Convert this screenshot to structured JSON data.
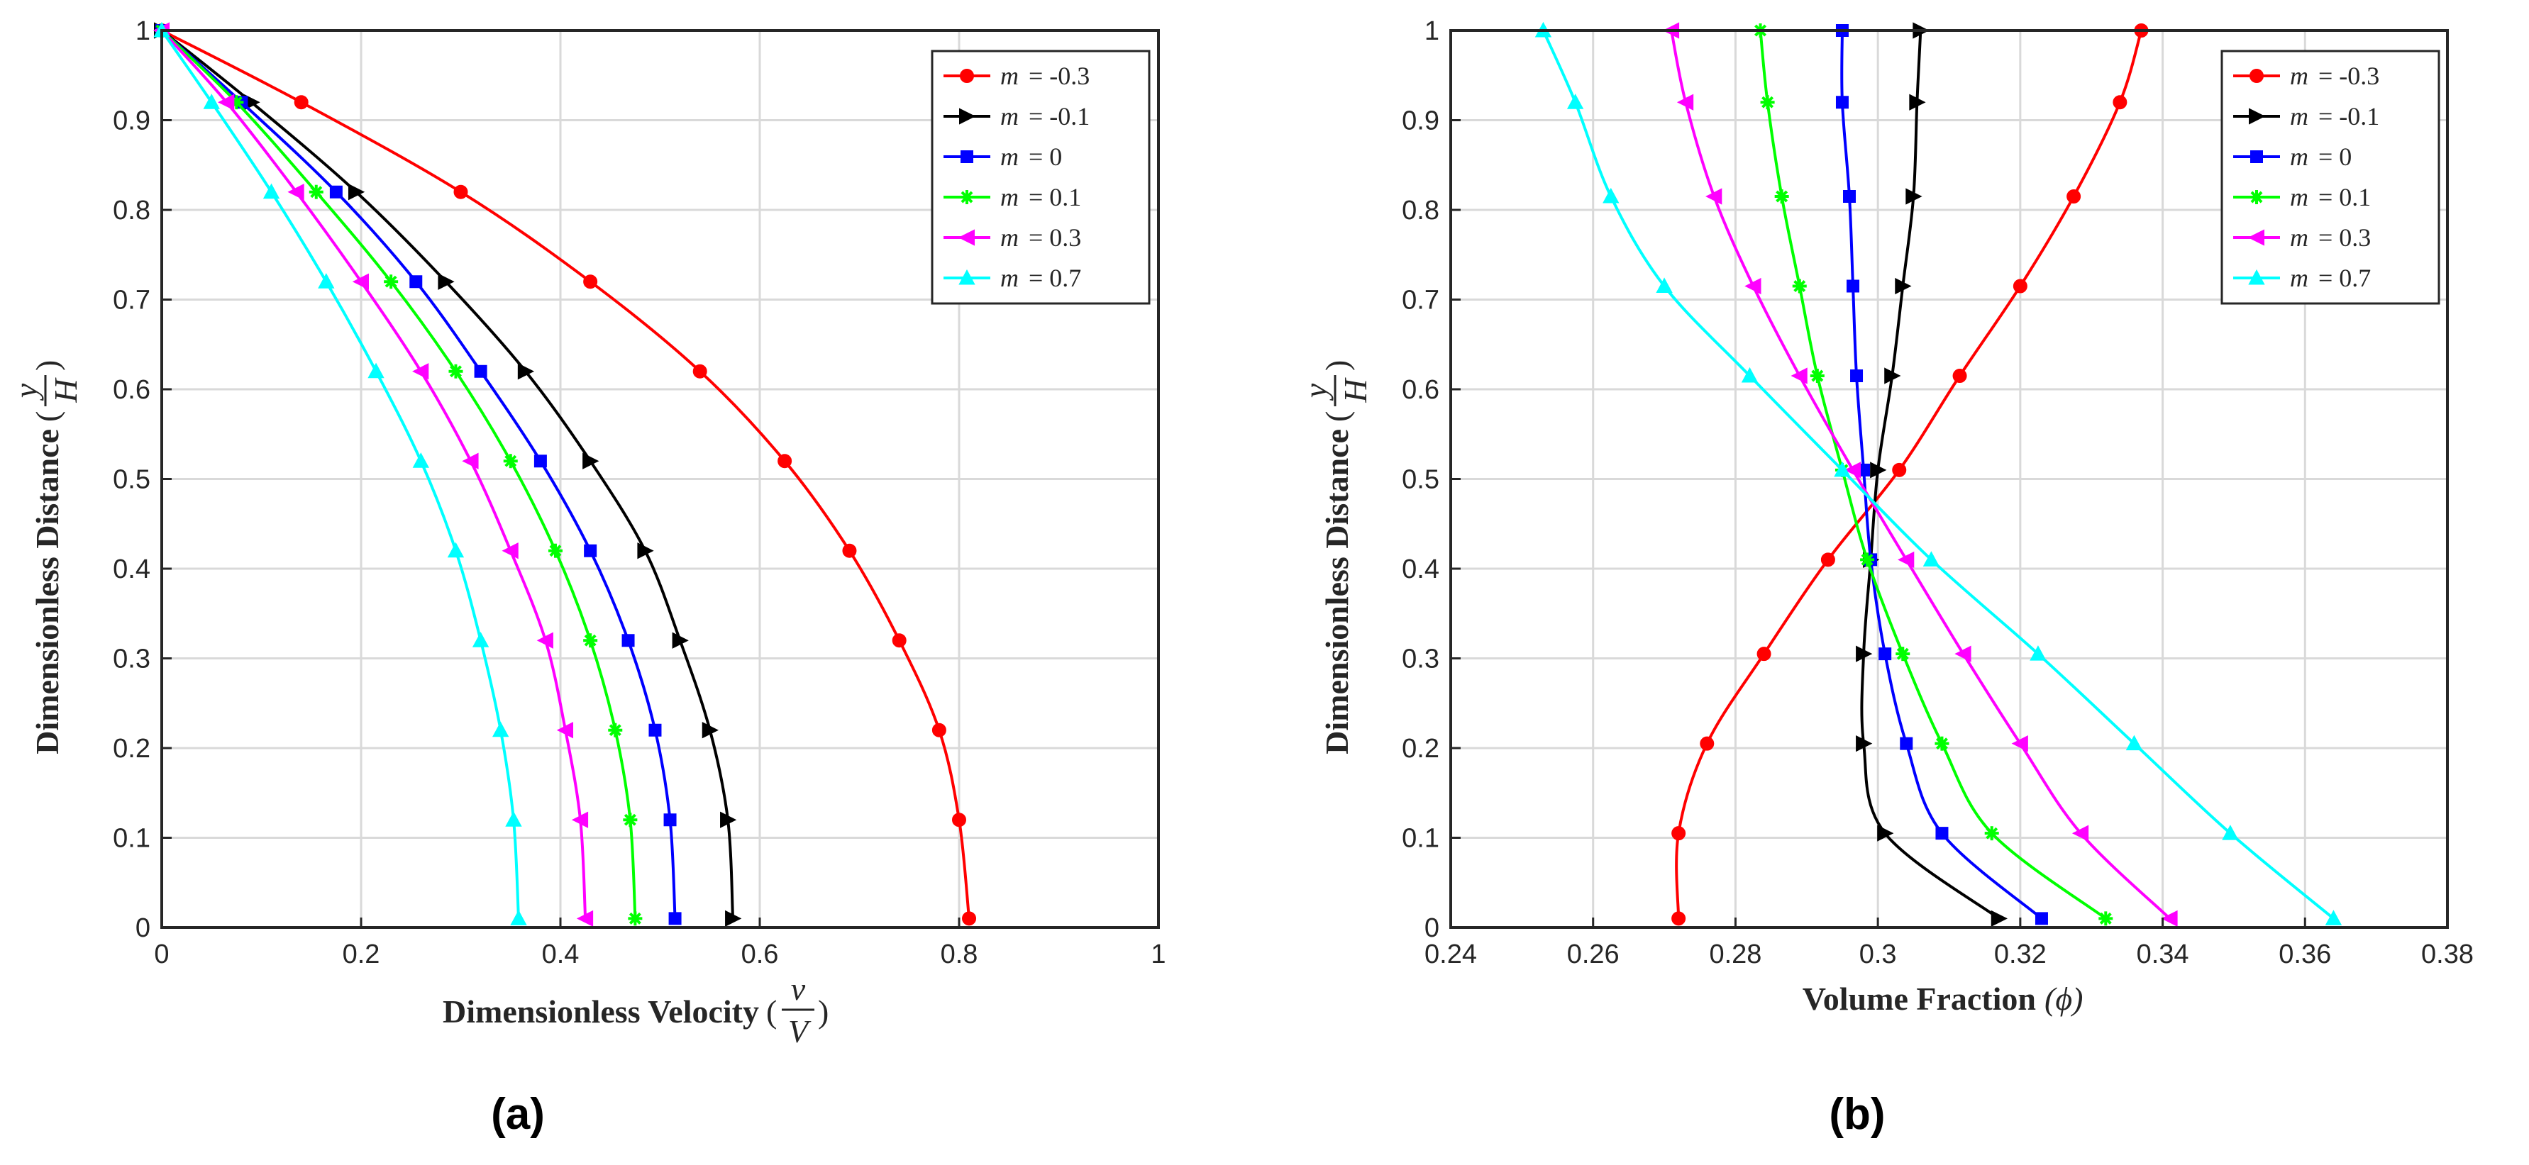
{
  "figure": {
    "labels": [
      "(a)",
      "(b)"
    ]
  },
  "chart_data": [
    {
      "type": "line",
      "panel": "(a)",
      "xlabel": "Dimensionless Velocity",
      "xlabel_fraction": {
        "num": "v",
        "den": "V"
      },
      "ylabel": "Dimensionless Distance",
      "ylabel_fraction": {
        "num": "y",
        "den": "H"
      },
      "xlim": [
        0,
        1
      ],
      "ylim": [
        0,
        1
      ],
      "xticks": [
        "0",
        "0.2",
        "0.4",
        "0.6",
        "0.8",
        "1"
      ],
      "yticks": [
        "0",
        "0.1",
        "0.2",
        "0.3",
        "0.4",
        "0.5",
        "0.6",
        "0.7",
        "0.8",
        "0.9",
        "1"
      ],
      "grid": true,
      "legend_position": "top-right",
      "series": [
        {
          "name": "m = -0.3",
          "symbol": "m",
          "value": "= -0.3",
          "color": "#ff0000",
          "marker": "circle",
          "x": [
            0,
            0.14,
            0.3,
            0.43,
            0.54,
            0.625,
            0.69,
            0.74,
            0.78,
            0.8,
            0.81
          ],
          "y": [
            1,
            0.92,
            0.82,
            0.72,
            0.62,
            0.52,
            0.42,
            0.32,
            0.22,
            0.12,
            0.01
          ]
        },
        {
          "name": "m = -0.1",
          "symbol": "m",
          "value": "= -0.1",
          "color": "#000000",
          "marker": "triangle-right",
          "x": [
            0,
            0.09,
            0.195,
            0.285,
            0.365,
            0.43,
            0.485,
            0.52,
            0.55,
            0.568,
            0.573
          ],
          "y": [
            1,
            0.92,
            0.82,
            0.72,
            0.62,
            0.52,
            0.42,
            0.32,
            0.22,
            0.12,
            0.01
          ]
        },
        {
          "name": "m = 0",
          "symbol": "m",
          "value": "= 0",
          "color": "#0000ff",
          "marker": "square",
          "x": [
            0,
            0.08,
            0.175,
            0.255,
            0.32,
            0.38,
            0.43,
            0.468,
            0.495,
            0.51,
            0.515
          ],
          "y": [
            1,
            0.92,
            0.82,
            0.72,
            0.62,
            0.52,
            0.42,
            0.32,
            0.22,
            0.12,
            0.01
          ]
        },
        {
          "name": "m = 0.1",
          "symbol": "m",
          "value": "= 0.1",
          "color": "#00ff00",
          "marker": "star",
          "x": [
            0,
            0.075,
            0.155,
            0.23,
            0.295,
            0.35,
            0.395,
            0.43,
            0.455,
            0.47,
            0.475
          ],
          "y": [
            1,
            0.92,
            0.82,
            0.72,
            0.62,
            0.52,
            0.42,
            0.32,
            0.22,
            0.12,
            0.01
          ]
        },
        {
          "name": "m = 0.3",
          "symbol": "m",
          "value": "= 0.3",
          "color": "#ff00ff",
          "marker": "triangle-left",
          "x": [
            0,
            0.065,
            0.135,
            0.2,
            0.26,
            0.31,
            0.35,
            0.385,
            0.405,
            0.42,
            0.425
          ],
          "y": [
            1,
            0.92,
            0.82,
            0.72,
            0.62,
            0.52,
            0.42,
            0.32,
            0.22,
            0.12,
            0.01
          ]
        },
        {
          "name": "m = 0.7",
          "symbol": "m",
          "value": "= 0.7",
          "color": "#00ffff",
          "marker": "triangle-up",
          "x": [
            0,
            0.05,
            0.11,
            0.165,
            0.215,
            0.26,
            0.295,
            0.32,
            0.34,
            0.353,
            0.358
          ],
          "y": [
            1,
            0.92,
            0.82,
            0.72,
            0.62,
            0.52,
            0.42,
            0.32,
            0.22,
            0.12,
            0.01
          ]
        }
      ]
    },
    {
      "type": "line",
      "panel": "(b)",
      "xlabel": "Volume Fraction",
      "xlabel_symbol": "(ϕ)",
      "ylabel": "Dimensionless Distance",
      "ylabel_fraction": {
        "num": "y",
        "den": "H"
      },
      "xlim": [
        0.24,
        0.38
      ],
      "ylim": [
        0,
        1
      ],
      "xticks": [
        "0.24",
        "0.26",
        "0.28",
        "0.3",
        "0.32",
        "0.34",
        "0.36",
        "0.38"
      ],
      "yticks": [
        "0",
        "0.1",
        "0.2",
        "0.3",
        "0.4",
        "0.5",
        "0.6",
        "0.7",
        "0.8",
        "0.9",
        "1"
      ],
      "grid": true,
      "legend_position": "top-right",
      "series": [
        {
          "name": "m = -0.3",
          "symbol": "m",
          "value": "= -0.3",
          "color": "#ff0000",
          "marker": "circle",
          "x": [
            0.272,
            0.272,
            0.276,
            0.284,
            0.293,
            0.303,
            0.3115,
            0.32,
            0.3275,
            0.334,
            0.337
          ],
          "y": [
            0.01,
            0.105,
            0.205,
            0.305,
            0.41,
            0.51,
            0.615,
            0.715,
            0.815,
            0.92,
            1
          ]
        },
        {
          "name": "m = -0.1",
          "symbol": "m",
          "value": "= -0.1",
          "color": "#000000",
          "marker": "triangle-right",
          "x": [
            0.317,
            0.301,
            0.298,
            0.298,
            0.299,
            0.3,
            0.302,
            0.3035,
            0.305,
            0.3055,
            0.306
          ],
          "y": [
            0.01,
            0.105,
            0.205,
            0.305,
            0.41,
            0.51,
            0.615,
            0.715,
            0.815,
            0.92,
            1
          ]
        },
        {
          "name": "m = 0",
          "symbol": "m",
          "value": "= 0",
          "color": "#0000ff",
          "marker": "square",
          "x": [
            0.323,
            0.309,
            0.304,
            0.301,
            0.299,
            0.298,
            0.297,
            0.2965,
            0.296,
            0.295,
            0.295
          ],
          "y": [
            0.01,
            0.105,
            0.205,
            0.305,
            0.41,
            0.51,
            0.615,
            0.715,
            0.815,
            0.92,
            1
          ]
        },
        {
          "name": "m = 0.1",
          "symbol": "m",
          "value": "= 0.1",
          "color": "#00ff00",
          "marker": "star",
          "x": [
            0.332,
            0.316,
            0.309,
            0.3035,
            0.2985,
            0.295,
            0.2915,
            0.289,
            0.2865,
            0.2845,
            0.2835
          ],
          "y": [
            0.01,
            0.105,
            0.205,
            0.305,
            0.41,
            0.51,
            0.615,
            0.715,
            0.815,
            0.92,
            1
          ]
        },
        {
          "name": "m = 0.3",
          "symbol": "m",
          "value": "= 0.3",
          "color": "#ff00ff",
          "marker": "triangle-left",
          "x": [
            0.341,
            0.3285,
            0.32,
            0.312,
            0.304,
            0.2965,
            0.289,
            0.2825,
            0.277,
            0.273,
            0.271
          ],
          "y": [
            0.01,
            0.105,
            0.205,
            0.305,
            0.41,
            0.51,
            0.615,
            0.715,
            0.815,
            0.92,
            1
          ]
        },
        {
          "name": "m = 0.7",
          "symbol": "m",
          "value": "= 0.7",
          "color": "#00ffff",
          "marker": "triangle-up",
          "x": [
            0.364,
            0.3495,
            0.336,
            0.3225,
            0.3075,
            0.295,
            0.282,
            0.27,
            0.2625,
            0.2575,
            0.253
          ],
          "y": [
            0.01,
            0.105,
            0.205,
            0.305,
            0.41,
            0.51,
            0.615,
            0.715,
            0.815,
            0.92,
            1
          ]
        }
      ]
    }
  ]
}
